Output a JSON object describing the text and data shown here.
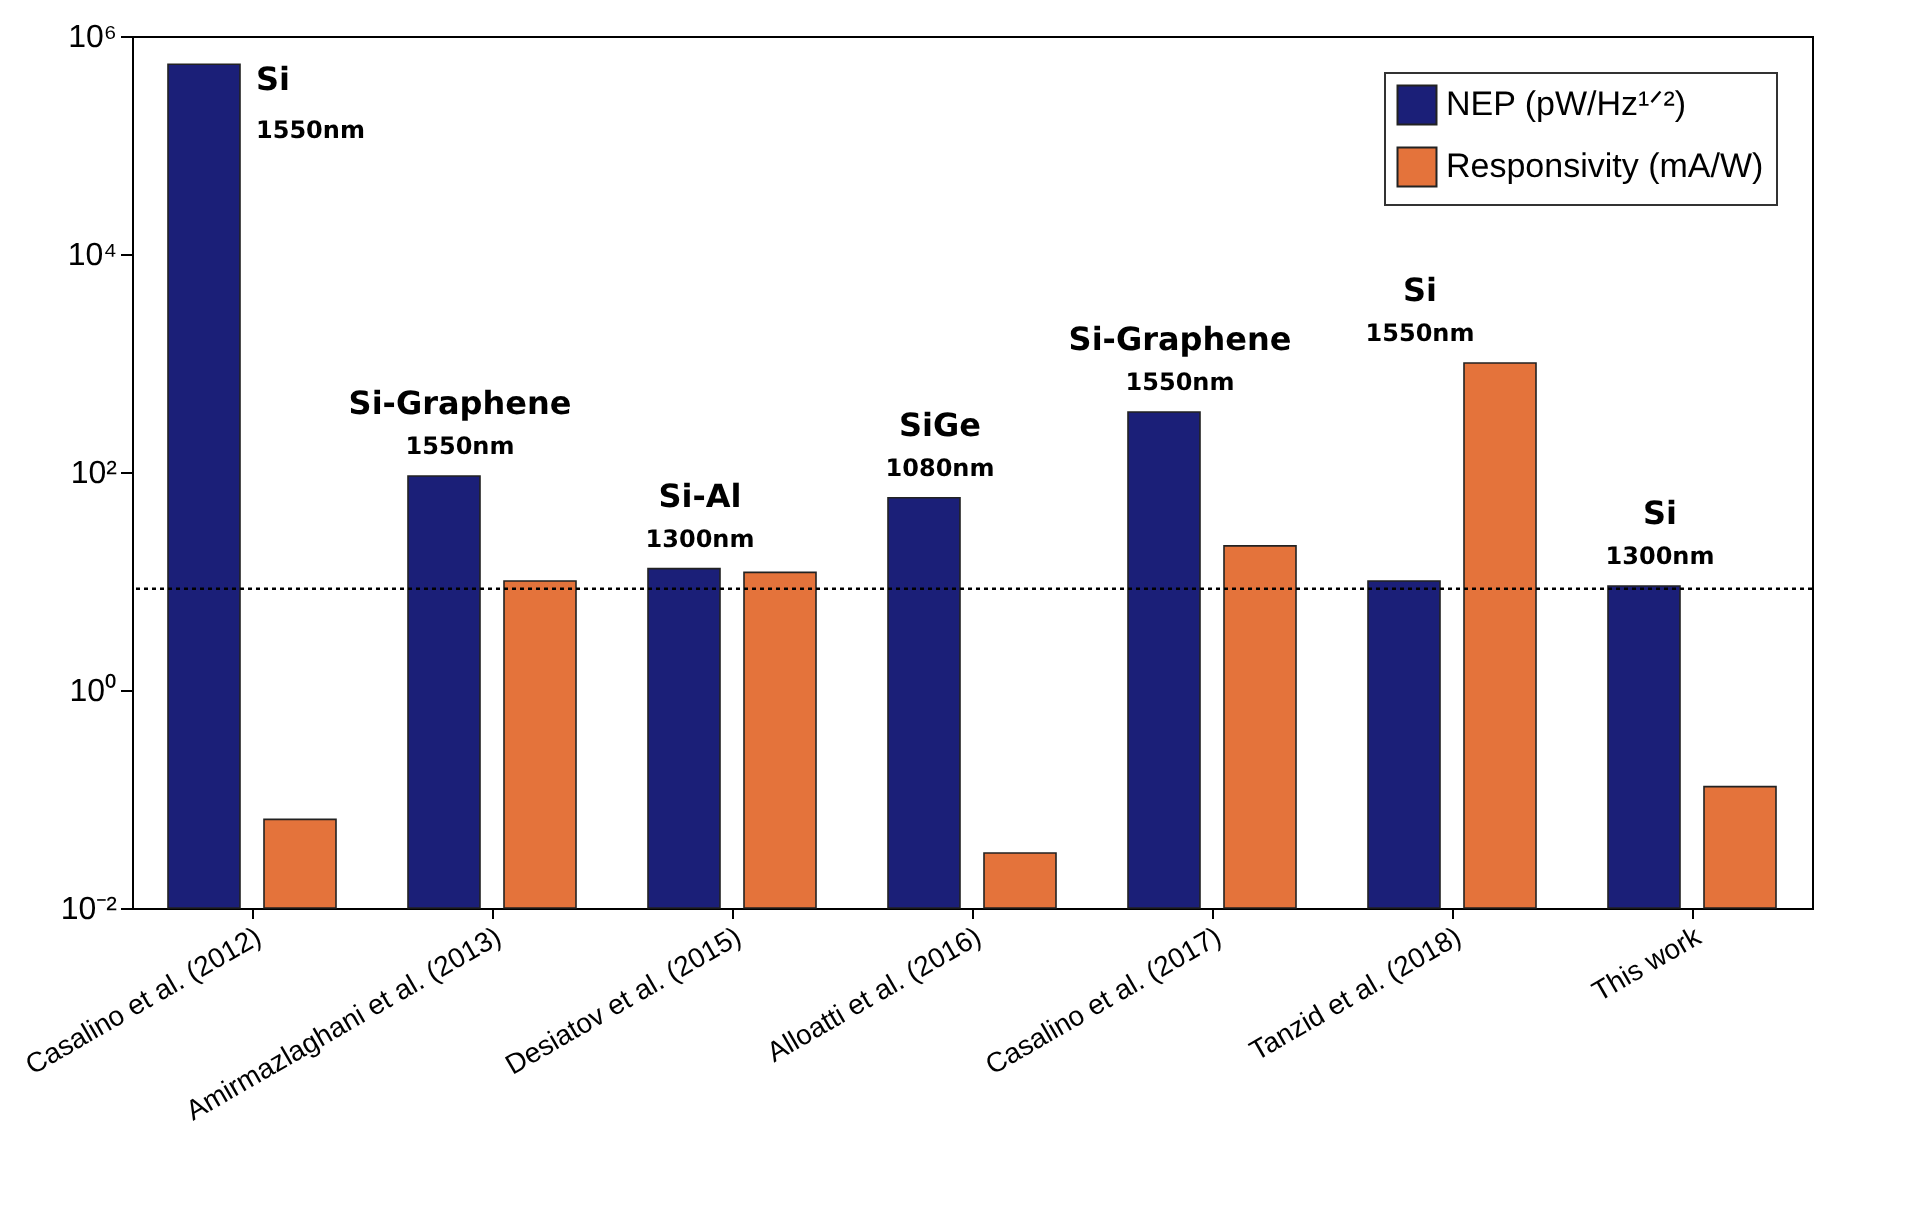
{
  "chart_data": {
    "type": "bar",
    "categories": [
      "Casalino et al. (2012)",
      "Amirmazlaghani et al. (2013)",
      "Desiatov et al. (2015)",
      "Alloatti et al. (2016)",
      "Casalino et al. (2017)",
      "Tanzid et al. (2018)",
      "This work"
    ],
    "series": [
      {
        "name": "NEP (pW/Hz¹ᐟ²)",
        "color": "#1b1f78",
        "values": [
          550000,
          92,
          13,
          58,
          355,
          10,
          9
        ]
      },
      {
        "name": "Responsivity (mA/W)",
        "color": "#e4733b",
        "values": [
          0.065,
          10,
          12,
          0.032,
          21,
          1000,
          0.13
        ]
      }
    ],
    "log": "y",
    "ylim": [
      0.01,
      1000000
    ],
    "yticks": [
      {
        "value": 0.01,
        "label": "10⁻²"
      },
      {
        "value": 1,
        "label": "10⁰"
      },
      {
        "value": 100,
        "label": "10²"
      },
      {
        "value": 10000,
        "label": "10⁴"
      },
      {
        "value": 1000000,
        "label": "10⁶"
      }
    ],
    "ref_lines": [
      {
        "axis": "y",
        "value": 8.5,
        "line_style": "dotted",
        "color": "#000000"
      }
    ],
    "annotations": [
      "Si",
      "1550nm",
      "Si-Graphene",
      "1550nm",
      "Si-Al",
      "1300nm",
      "SiGe",
      "1080nm",
      "Si-Graphene",
      "1550nm",
      "Si",
      "1550nm",
      "Si",
      "1300nm"
    ],
    "grid": false,
    "legend": "top right"
  }
}
